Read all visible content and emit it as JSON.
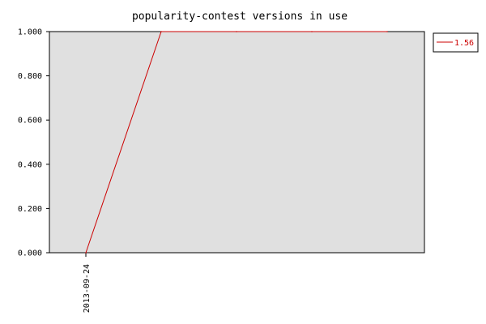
{
  "chart_data": {
    "type": "line",
    "title": "popularity-contest versions in use",
    "xlabel": "",
    "ylabel": "",
    "x": [
      "",
      "",
      "",
      "",
      ""
    ],
    "x_tick_labels": [
      "2013-09-24"
    ],
    "series": [
      {
        "name": "1.56",
        "color": "#cc0000",
        "values": [
          0.0,
          1.0,
          1.0,
          1.0,
          1.0
        ]
      }
    ],
    "y_ticks": [
      0.0,
      0.2,
      0.4,
      0.6,
      0.8,
      1.0
    ],
    "y_tick_labels": [
      "0.000",
      "0.200",
      "0.400",
      "0.600",
      "0.800",
      "1.000"
    ],
    "ylim": [
      0,
      1
    ],
    "grid": false,
    "legend_position": "top-right",
    "plot_background": "#e0e0e0",
    "axis_color": "#000000"
  }
}
